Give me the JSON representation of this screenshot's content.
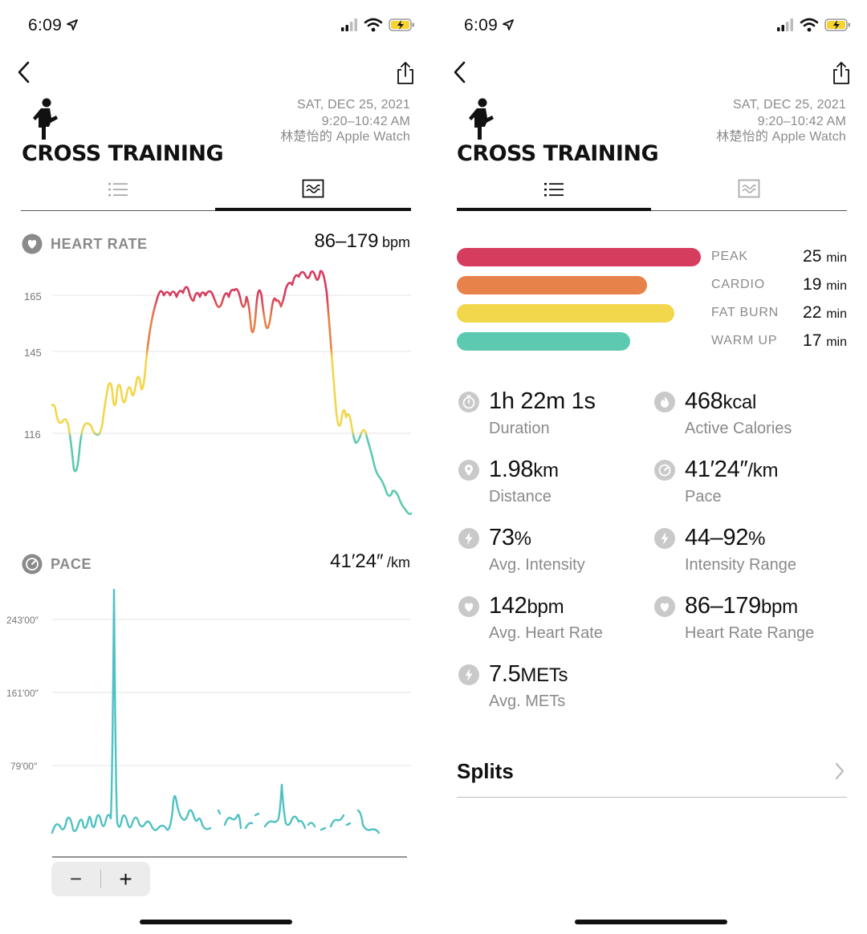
{
  "status_bar": {
    "time": "6:09"
  },
  "workout": {
    "title": "CROSS TRAINING",
    "date": "SAT, DEC 25, 2021",
    "time_range": "9:20–10:42 AM",
    "device": "林楚怡的 Apple Watch"
  },
  "heart_rate": {
    "label": "HEART RATE",
    "value": "86–179",
    "unit": "bpm",
    "y_ticks": [
      "165",
      "145",
      "116"
    ]
  },
  "pace": {
    "label": "PACE",
    "value": "41′24″",
    "unit": "/km",
    "y_ticks": [
      "243′00″",
      "161′00″",
      "79′00″"
    ]
  },
  "zoom": {
    "minus": "−",
    "plus": "+"
  },
  "zones": [
    {
      "name": "PEAK",
      "value": "25",
      "unit": "min",
      "color": "#d63c5e",
      "fraction": 1.0
    },
    {
      "name": "CARDIO",
      "value": "19",
      "unit": "min",
      "color": "#e6824a",
      "fraction": 0.78
    },
    {
      "name": "FAT BURN",
      "value": "22",
      "unit": "min",
      "color": "#f2d64b",
      "fraction": 0.89
    },
    {
      "name": "WARM UP",
      "value": "17",
      "unit": "min",
      "color": "#5ec9b1",
      "fraction": 0.71
    }
  ],
  "stats": [
    {
      "icon": "stopwatch-icon",
      "value": "1h 22m 1s",
      "unit": "",
      "label": "Duration"
    },
    {
      "icon": "flame-icon",
      "value": "468",
      "unit": "kcal",
      "label": "Active Calories"
    },
    {
      "icon": "location-pin-icon",
      "value": "1.98",
      "unit": "km",
      "label": "Distance"
    },
    {
      "icon": "speedometer-icon",
      "value": "41′24″",
      "unit": "/km",
      "label": "Pace"
    },
    {
      "icon": "bolt-icon",
      "value": "73",
      "unit": "%",
      "label": "Avg. Intensity"
    },
    {
      "icon": "bolt-icon",
      "value": "44–92",
      "unit": "%",
      "label": "Intensity Range"
    },
    {
      "icon": "heart-icon",
      "value": "142",
      "unit": "bpm",
      "label": "Avg. Heart Rate"
    },
    {
      "icon": "heart-icon",
      "value": "86–179",
      "unit": "bpm",
      "label": "Heart Rate Range"
    },
    {
      "icon": "bolt-icon",
      "value": "7.5",
      "unit": "METs",
      "label": "Avg. METs"
    }
  ],
  "splits": {
    "label": "Splits"
  },
  "colors": {
    "peak": "#d63c5e",
    "cardio": "#e6824a",
    "fat_burn": "#f2d64b",
    "warm_up": "#5ec9b1",
    "pace_line": "#4fc1c4"
  }
}
